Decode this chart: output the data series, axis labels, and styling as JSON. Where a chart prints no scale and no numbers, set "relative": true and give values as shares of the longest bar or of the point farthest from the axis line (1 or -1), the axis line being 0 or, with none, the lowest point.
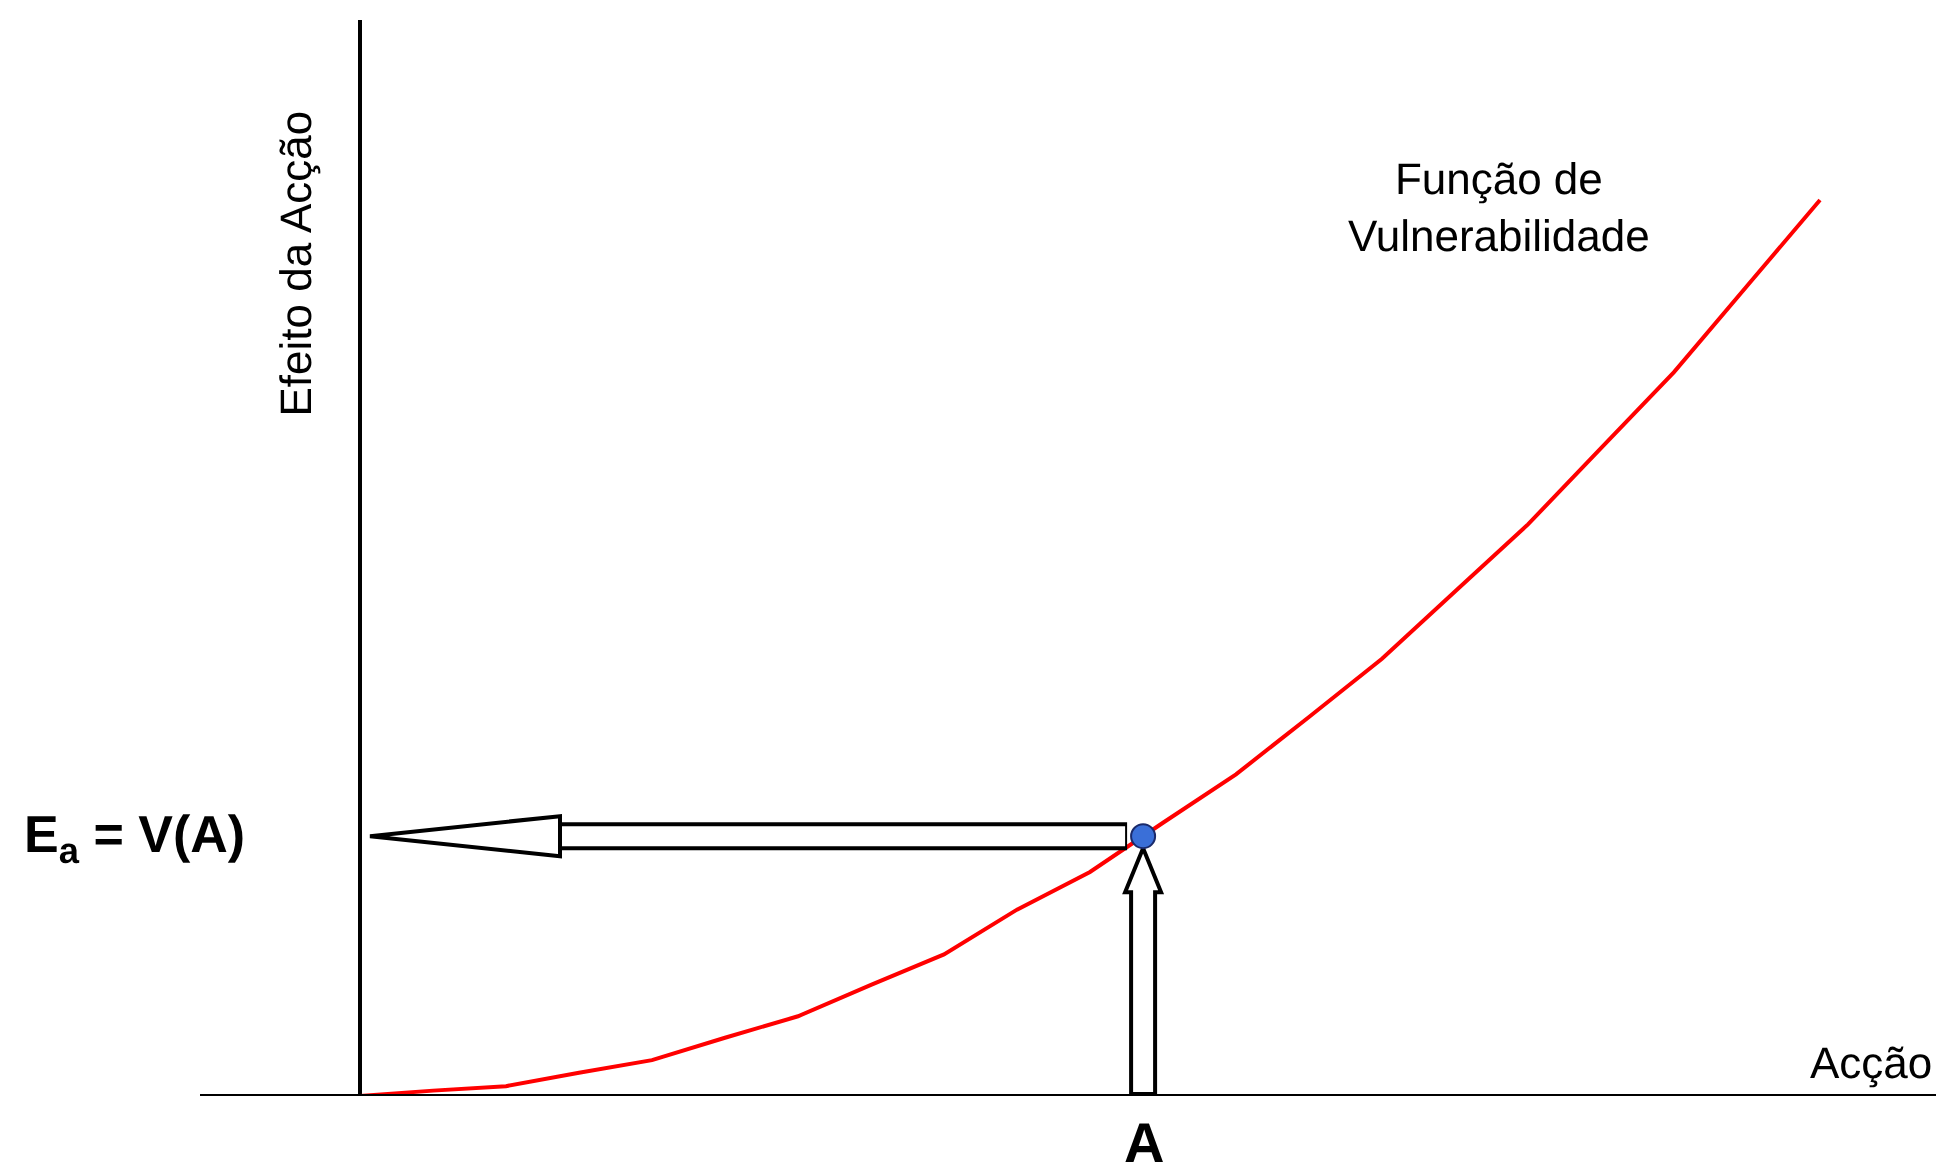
{
  "chart_data": {
    "type": "line",
    "relative": true,
    "xlabel": "Acção",
    "ylabel": "Efeito da Acção",
    "tick_labels": false,
    "grid": false,
    "legend": false,
    "marker": "none",
    "line_style": "solid",
    "categories": [
      null,
      null,
      null,
      null,
      null,
      null,
      null,
      null,
      null,
      null,
      null,
      null,
      null,
      null,
      null,
      null,
      null,
      null,
      null,
      null,
      null
    ],
    "series": [
      {
        "color": "#ff0000",
        "values": [
          0,
          0.006,
          0.011,
          0.026,
          0.04,
          0.065,
          0.089,
          0.124,
          0.158,
          0.208,
          0.25,
          0.305,
          0.359,
          0.423,
          0.488,
          0.563,
          0.638,
          0.723,
          0.808,
          0.904,
          1
        ]
      }
    ],
    "ref_lines": [
      {
        "axis": "y",
        "value": 0.29,
        "label": "E$_{a}$ = V(A)"
      }
    ],
    "annotations": [
      "Função de\nVulnerabilidade",
      "A"
    ]
  }
}
